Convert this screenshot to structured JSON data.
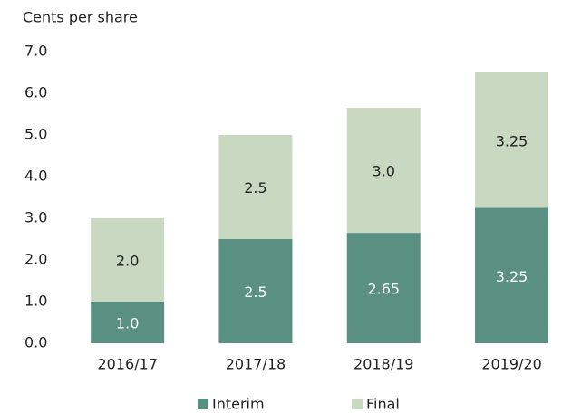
{
  "chart_data": {
    "type": "stacked_bar",
    "y_axis_label": "Cents per share",
    "categories": [
      "2016/17",
      "2017/18",
      "2018/19",
      "2019/20"
    ],
    "series": [
      {
        "name": "Interim",
        "color": "#5a9082",
        "values": [
          1,
          2.5,
          2.65,
          3.25
        ],
        "value_labels": [
          "1.0",
          "2.5",
          "2.65",
          "3.25"
        ]
      },
      {
        "name": "Final",
        "color": "#c9d8c1",
        "values": [
          2,
          2.5,
          3,
          3.25
        ],
        "value_labels": [
          "2.0",
          "2.5",
          "3.0",
          "3.25"
        ]
      }
    ],
    "ylim": [
      0,
      7
    ],
    "yticks": [
      {
        "value": 0,
        "label": "0.0"
      },
      {
        "value": 1,
        "label": "1.0"
      },
      {
        "value": 2,
        "label": "2.0"
      },
      {
        "value": 3,
        "label": "3.0"
      },
      {
        "value": 4,
        "label": "4.0"
      },
      {
        "value": 5,
        "label": "5.0"
      },
      {
        "value": 6,
        "label": "6.0"
      },
      {
        "value": 7,
        "label": "7.0"
      }
    ],
    "grid": false,
    "legend": "bottom"
  }
}
